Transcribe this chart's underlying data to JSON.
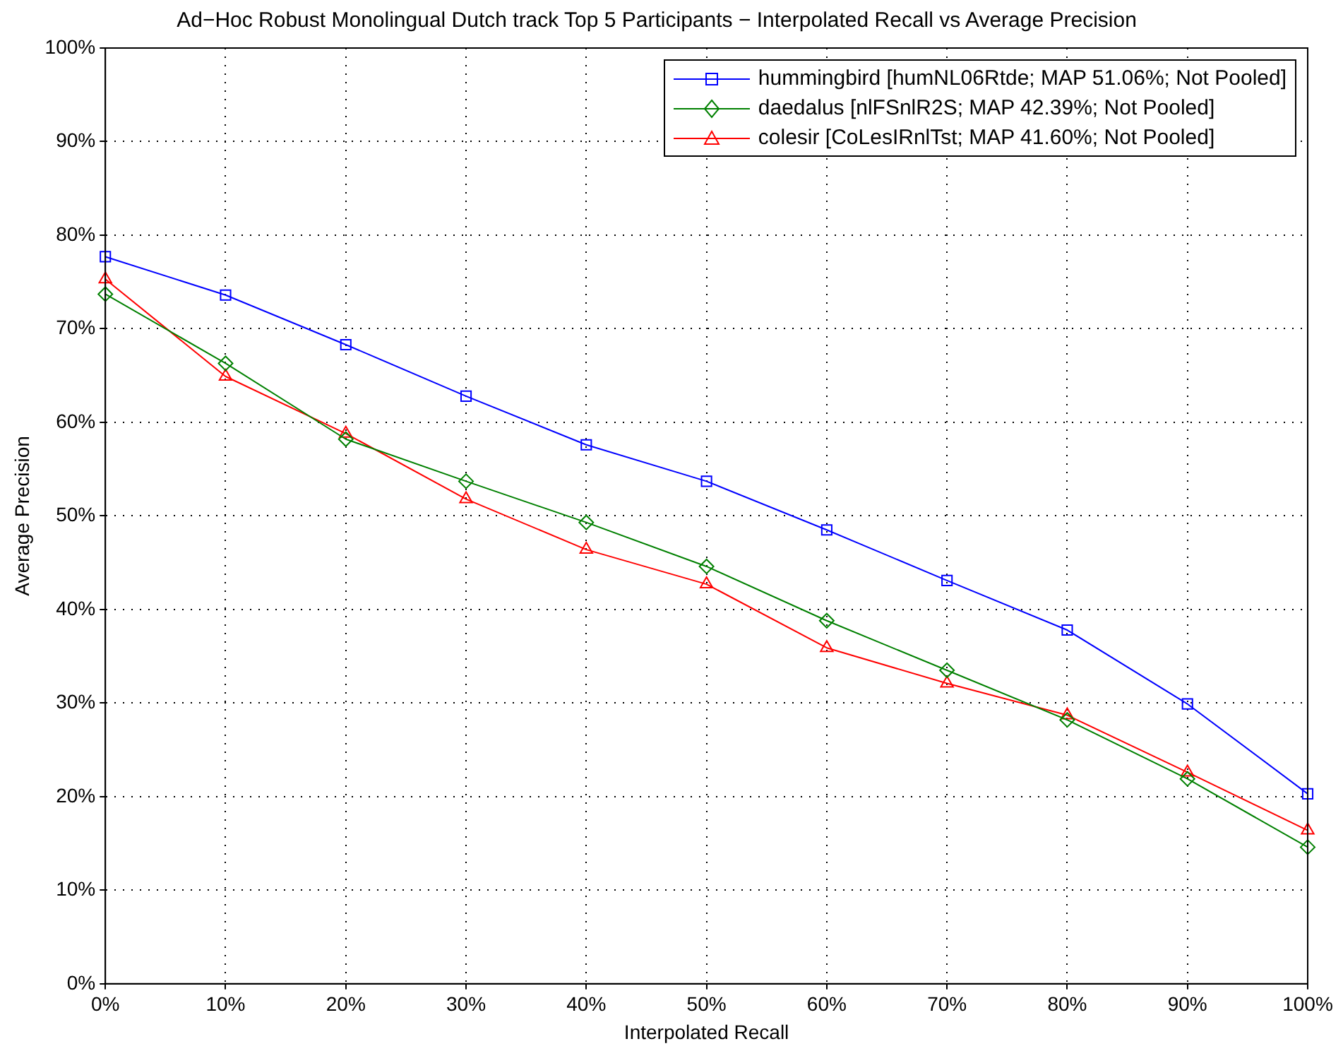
{
  "chart_data": {
    "type": "line",
    "title": "Ad−Hoc Robust Monolingual Dutch track Top 5 Participants − Interpolated Recall vs Average Precision",
    "xlabel": "Interpolated Recall",
    "ylabel": "Average Precision",
    "x": [
      0,
      10,
      20,
      30,
      40,
      50,
      60,
      70,
      80,
      90,
      100
    ],
    "xlim": [
      0,
      100
    ],
    "xticks": [
      {
        "value": 0,
        "label": "0%"
      },
      {
        "value": 10,
        "label": "10%"
      },
      {
        "value": 20,
        "label": "20%"
      },
      {
        "value": 30,
        "label": "30%"
      },
      {
        "value": 40,
        "label": "40%"
      },
      {
        "value": 50,
        "label": "50%"
      },
      {
        "value": 60,
        "label": "60%"
      },
      {
        "value": 70,
        "label": "70%"
      },
      {
        "value": 80,
        "label": "80%"
      },
      {
        "value": 90,
        "label": "90%"
      },
      {
        "value": 100,
        "label": "100%"
      }
    ],
    "ylim": [
      0,
      100
    ],
    "yticks": [
      {
        "value": 0,
        "label": "0%"
      },
      {
        "value": 10,
        "label": "10%"
      },
      {
        "value": 20,
        "label": "20%"
      },
      {
        "value": 30,
        "label": "30%"
      },
      {
        "value": 40,
        "label": "40%"
      },
      {
        "value": 50,
        "label": "50%"
      },
      {
        "value": 60,
        "label": "60%"
      },
      {
        "value": 70,
        "label": "70%"
      },
      {
        "value": 80,
        "label": "80%"
      },
      {
        "value": 90,
        "label": "90%"
      },
      {
        "value": 100,
        "label": "100%"
      }
    ],
    "grid": true,
    "legend": "top right",
    "line_style": "solid",
    "series": [
      {
        "name": "hummingbird [humNL06Rtde; MAP 51.06%; Not Pooled]",
        "color": "#0000ff",
        "marker": "square",
        "values": [
          77.7,
          73.6,
          68.3,
          62.8,
          57.6,
          53.7,
          48.5,
          43.1,
          37.8,
          29.9,
          20.3
        ]
      },
      {
        "name": "daedalus [nlFSnlR2S; MAP 42.39%; Not Pooled]",
        "color": "#008000",
        "marker": "diamond",
        "values": [
          73.7,
          66.3,
          58.2,
          53.7,
          49.3,
          44.6,
          38.8,
          33.5,
          28.2,
          21.9,
          14.6
        ]
      },
      {
        "name": "colesir [CoLesIRnlTst; MAP 41.60%; Not Pooled]",
        "color": "#ff0000",
        "marker": "triangle",
        "values": [
          75.3,
          64.9,
          58.8,
          51.8,
          46.4,
          42.7,
          35.9,
          32.1,
          28.7,
          22.6,
          16.4
        ]
      }
    ]
  }
}
